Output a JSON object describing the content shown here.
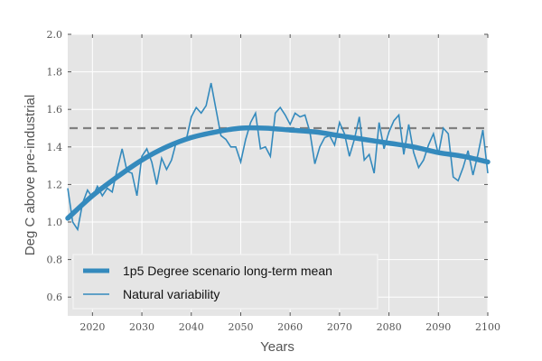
{
  "chart_data": {
    "type": "line",
    "title": "",
    "xlabel": "Years",
    "ylabel": "Deg C above pre-industrial",
    "xlim": [
      2015,
      2100
    ],
    "ylim": [
      0.5,
      2.0
    ],
    "xticks": [
      2020,
      2030,
      2040,
      2050,
      2060,
      2070,
      2080,
      2090,
      2100
    ],
    "yticks": [
      0.6,
      0.8,
      1.0,
      1.2,
      1.4,
      1.6,
      1.8,
      2.0
    ],
    "ytick_labels": [
      "0.6",
      "0.8",
      "1.0",
      "1.2",
      "1.4",
      "1.6",
      "1.8",
      "2.0"
    ],
    "grid": true,
    "legend_placement": "lower-left",
    "reference_line": {
      "y": 1.5,
      "style": "dashed",
      "color": "#808080"
    },
    "series": [
      {
        "name": "1p5 Degree scenario long-term mean",
        "color": "#348ABD",
        "style": "thick",
        "x": [
          2015,
          2020,
          2025,
          2030,
          2035,
          2040,
          2045,
          2050,
          2055,
          2060,
          2065,
          2070,
          2075,
          2080,
          2085,
          2090,
          2095,
          2100
        ],
        "values": [
          1.02,
          1.14,
          1.24,
          1.33,
          1.4,
          1.45,
          1.48,
          1.5,
          1.5,
          1.49,
          1.48,
          1.46,
          1.44,
          1.42,
          1.4,
          1.37,
          1.35,
          1.32
        ]
      },
      {
        "name": "Natural variability",
        "color": "#348ABD",
        "style": "thin",
        "x_start": 2015,
        "x_step": 1,
        "values": [
          1.18,
          1.0,
          0.96,
          1.1,
          1.17,
          1.13,
          1.19,
          1.14,
          1.18,
          1.16,
          1.28,
          1.39,
          1.27,
          1.26,
          1.14,
          1.35,
          1.39,
          1.32,
          1.2,
          1.34,
          1.28,
          1.33,
          1.43,
          1.43,
          1.44,
          1.56,
          1.61,
          1.58,
          1.62,
          1.74,
          1.6,
          1.46,
          1.44,
          1.4,
          1.4,
          1.32,
          1.44,
          1.53,
          1.58,
          1.39,
          1.4,
          1.35,
          1.58,
          1.61,
          1.57,
          1.52,
          1.58,
          1.56,
          1.57,
          1.48,
          1.31,
          1.4,
          1.45,
          1.46,
          1.41,
          1.53,
          1.47,
          1.35,
          1.44,
          1.56,
          1.33,
          1.36,
          1.26,
          1.53,
          1.39,
          1.48,
          1.54,
          1.57,
          1.36,
          1.52,
          1.37,
          1.29,
          1.33,
          1.41,
          1.47,
          1.36,
          1.5,
          1.47,
          1.24,
          1.22,
          1.29,
          1.38,
          1.25,
          1.36,
          1.49,
          1.26
        ]
      }
    ]
  }
}
